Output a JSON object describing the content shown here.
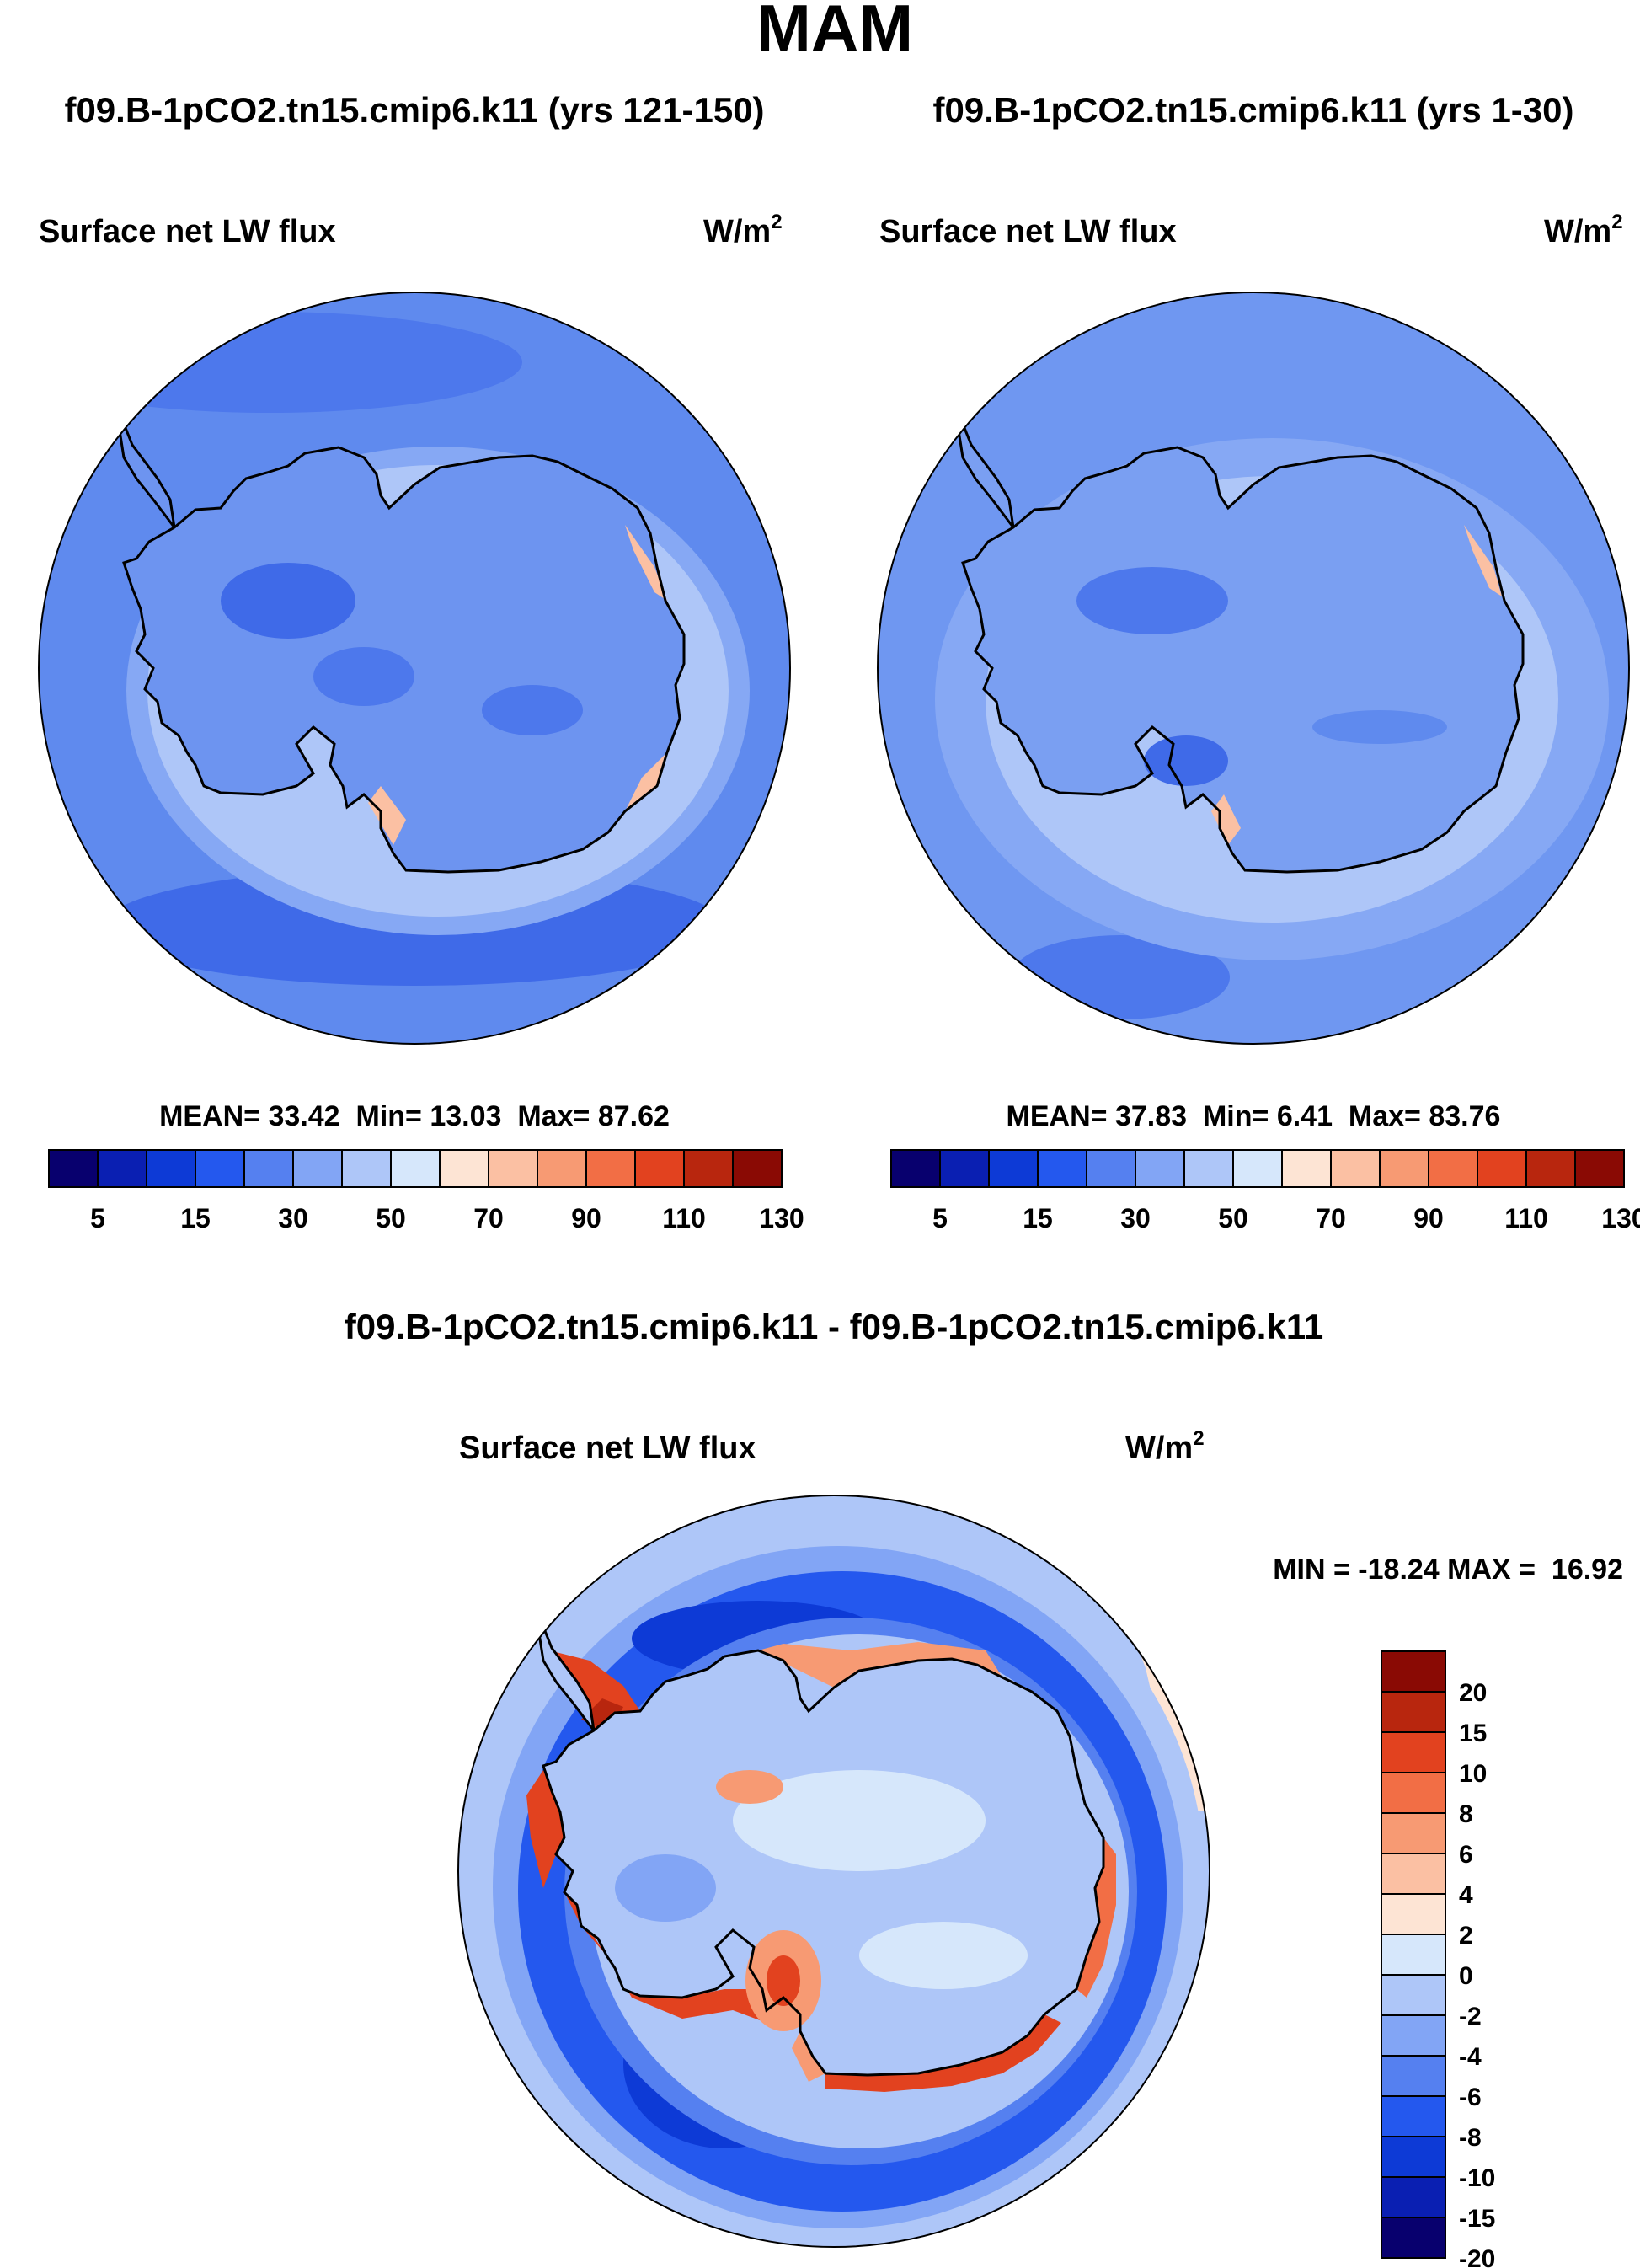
{
  "title": "MAM",
  "panels": [
    {
      "case_label": "f09.B-1pCO2.tn15.cmip6.k11 (yrs 121-150)",
      "variable": "Surface net LW flux",
      "units_base": "W/m",
      "units_exp": "2",
      "stats": {
        "mean_label": "MEAN=",
        "mean": "33.42",
        "min_label": "Min=",
        "min": "13.03",
        "max_label": "Max=",
        "max": "87.62"
      }
    },
    {
      "case_label": "f09.B-1pCO2.tn15.cmip6.k11 (yrs 1-30)",
      "variable": "Surface net LW flux",
      "units_base": "W/m",
      "units_exp": "2",
      "stats": {
        "mean_label": "MEAN=",
        "mean": "37.83",
        "min_label": "Min=",
        "min": "6.41",
        "max_label": "Max=",
        "max": "83.76"
      }
    }
  ],
  "diff_panel": {
    "case_label": "f09.B-1pCO2.tn15.cmip6.k11 - f09.B-1pCO2.tn15.cmip6.k11",
    "variable": "Surface net LW flux",
    "units_base": "W/m",
    "units_exp": "2",
    "minmax_text": "MIN = -18.24 MAX =  16.92"
  },
  "colorbar_abs": {
    "colors": [
      "#08006e",
      "#0a1fb2",
      "#0d3ad6",
      "#2458ee",
      "#5580f0",
      "#82a5f5",
      "#aec6f8",
      "#d6e7fb",
      "#fde4d4",
      "#fbc0a3",
      "#f79a73",
      "#f26e45",
      "#e2421f",
      "#b8260e",
      "#8a0a04"
    ],
    "tick_labels": [
      "5",
      "15",
      "30",
      "50",
      "70",
      "90",
      "110",
      "130"
    ]
  },
  "colorbar_diff": {
    "colors_top_to_bottom": [
      "#8a0a04",
      "#b8260e",
      "#e2421f",
      "#f26e45",
      "#f79a73",
      "#fbc0a3",
      "#fde4d4",
      "#d6e7fb",
      "#aec6f8",
      "#82a5f5",
      "#5580f0",
      "#2458ee",
      "#0d3ad6",
      "#0a1fb2",
      "#08006e"
    ],
    "tick_labels_top_to_bottom": [
      "20",
      "15",
      "10",
      "8",
      "6",
      "4",
      "2",
      "0",
      "-2",
      "-4",
      "-6",
      "-8",
      "-10",
      "-15",
      "-20"
    ]
  },
  "colors": {
    "ocean_abs": "#5f8aee",
    "ocean_deep": "#3f6ae8",
    "ocean_light": "#86a8f4",
    "ice_light": "#aec6f8",
    "land_abs": "#6d94f0",
    "warm_edge": "#fbc0a3",
    "coast_line": "#000000",
    "diff_ring_deep": "#0d3ad6",
    "diff_ring_mid": "#2458ee",
    "diff_outer": "#aec6f8",
    "diff_land": "#aec6f8",
    "diff_warm": "#e2421f"
  }
}
